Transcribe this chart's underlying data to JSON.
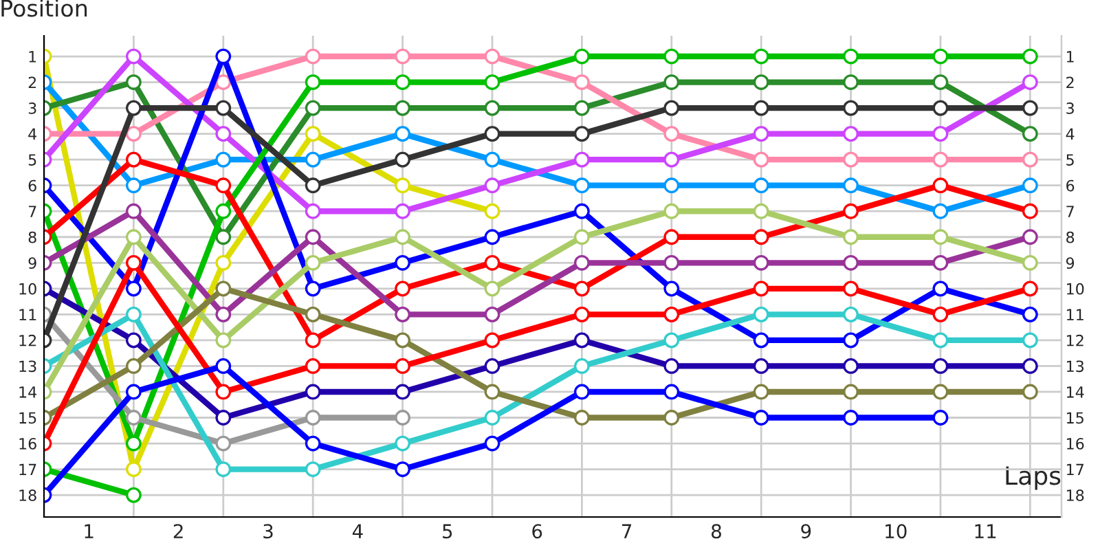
{
  "chart_data": {
    "type": "line",
    "xlabel": "Laps",
    "ylabel": "Position",
    "x": [
      0,
      1,
      2,
      3,
      4,
      5,
      6,
      7,
      8,
      9,
      10,
      11
    ],
    "xlim": [
      0,
      11.35
    ],
    "ylim": [
      18.85,
      0.2
    ],
    "y2lim": [
      18.85,
      0.2
    ],
    "xticks": [
      {
        "value": 0,
        "label": null
      },
      {
        "value": 0.5,
        "label": "1"
      },
      {
        "value": 1,
        "label": null
      },
      {
        "value": 1.5,
        "label": "2"
      },
      {
        "value": 2,
        "label": null
      },
      {
        "value": 2.5,
        "label": "3"
      },
      {
        "value": 3,
        "label": null
      },
      {
        "value": 3.5,
        "label": "4"
      },
      {
        "value": 4,
        "label": null
      },
      {
        "value": 4.5,
        "label": "5"
      },
      {
        "value": 5,
        "label": null
      },
      {
        "value": 5.5,
        "label": "6"
      },
      {
        "value": 6,
        "label": null
      },
      {
        "value": 6.5,
        "label": "7"
      },
      {
        "value": 7,
        "label": null
      },
      {
        "value": 7.5,
        "label": "8"
      },
      {
        "value": 8,
        "label": null
      },
      {
        "value": 8.5,
        "label": "9"
      },
      {
        "value": 9,
        "label": null
      },
      {
        "value": 9.5,
        "label": "10"
      },
      {
        "value": 10,
        "label": null
      },
      {
        "value": 10.5,
        "label": "11"
      },
      {
        "value": 11,
        "label": null
      }
    ],
    "yticks": [
      1,
      2,
      3,
      4,
      5,
      6,
      7,
      8,
      9,
      10,
      11,
      12,
      13,
      14,
      15,
      16,
      17,
      18
    ],
    "y2ticks": [
      1,
      2,
      3,
      4,
      5,
      6,
      7,
      8,
      9,
      10,
      11,
      12,
      13,
      14,
      15,
      16,
      17,
      18
    ],
    "grid": true,
    "legend": false,
    "marker": "circle",
    "line_style": "solid",
    "series": [
      {
        "color": "#dddd00",
        "values": [
          1,
          17,
          9,
          4,
          6,
          7,
          null,
          null,
          null,
          null,
          null,
          null
        ]
      },
      {
        "color": "#0099ff",
        "values": [
          2,
          6,
          5,
          5,
          4,
          5,
          6,
          6,
          6,
          6,
          7,
          6
        ]
      },
      {
        "color": "#2a8c2a",
        "values": [
          3,
          2,
          8,
          3,
          3,
          3,
          3,
          2,
          2,
          2,
          2,
          4
        ]
      },
      {
        "color": "#ff88aa",
        "values": [
          4,
          4,
          2,
          1,
          1,
          1,
          2,
          4,
          5,
          5,
          5,
          5
        ]
      },
      {
        "color": "#cc44ff",
        "values": [
          5,
          1,
          4,
          7,
          7,
          6,
          5,
          5,
          4,
          4,
          4,
          2
        ]
      },
      {
        "color": "#0000ff",
        "values": [
          6,
          10,
          1,
          10,
          9,
          8,
          7,
          10,
          12,
          12,
          10,
          11
        ]
      },
      {
        "color": "#00c000",
        "values": [
          7,
          16,
          7,
          2,
          2,
          2,
          1,
          1,
          1,
          1,
          1,
          1
        ]
      },
      {
        "color": "#ff0000",
        "values": [
          8,
          5,
          6,
          12,
          10,
          9,
          10,
          8,
          8,
          7,
          6,
          7
        ]
      },
      {
        "color": "#993399",
        "values": [
          9,
          7,
          11,
          8,
          11,
          11,
          9,
          9,
          9,
          9,
          9,
          8
        ]
      },
      {
        "color": "#2200aa",
        "values": [
          10,
          12,
          15,
          14,
          14,
          13,
          12,
          13,
          13,
          13,
          13,
          13
        ]
      },
      {
        "color": "#999999",
        "values": [
          11,
          15,
          16,
          15,
          15,
          null,
          null,
          null,
          null,
          null,
          null,
          null
        ]
      },
      {
        "color": "#333333",
        "values": [
          12,
          3,
          3,
          6,
          5,
          4,
          4,
          3,
          3,
          3,
          3,
          3
        ]
      },
      {
        "color": "#33cccc",
        "values": [
          13,
          11,
          17,
          17,
          16,
          15,
          13,
          12,
          11,
          11,
          12,
          12
        ]
      },
      {
        "color": "#aacc66",
        "values": [
          14,
          8,
          12,
          9,
          8,
          10,
          8,
          7,
          7,
          8,
          8,
          9
        ]
      },
      {
        "color": "#808040",
        "values": [
          15,
          13,
          10,
          11,
          12,
          14,
          15,
          15,
          14,
          14,
          14,
          14
        ]
      },
      {
        "color": "#ff0000",
        "values": [
          16,
          9,
          14,
          13,
          13,
          12,
          11,
          11,
          10,
          10,
          11,
          10
        ]
      },
      {
        "color": "#00c000",
        "values": [
          17,
          18,
          null,
          null,
          null,
          null,
          null,
          null,
          null,
          null,
          null,
          null
        ]
      },
      {
        "color": "#0000ff",
        "values": [
          18,
          14,
          13,
          16,
          17,
          16,
          14,
          14,
          15,
          15,
          15,
          null
        ]
      }
    ]
  }
}
